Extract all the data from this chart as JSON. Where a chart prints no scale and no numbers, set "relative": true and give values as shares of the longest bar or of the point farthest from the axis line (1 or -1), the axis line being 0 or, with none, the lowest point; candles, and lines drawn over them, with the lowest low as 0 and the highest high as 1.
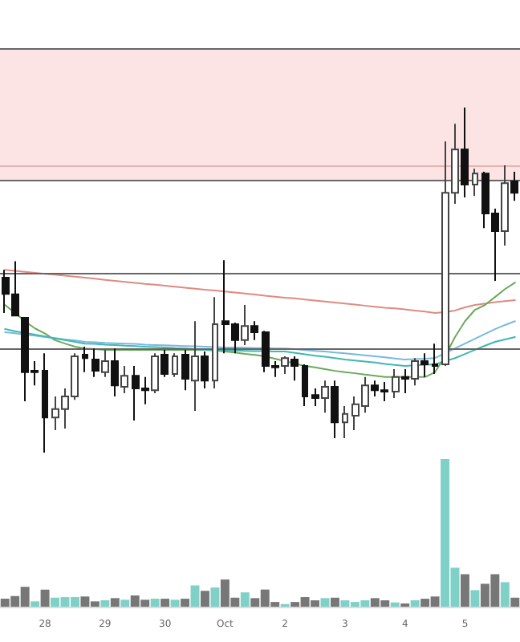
{
  "chart_data": [
    {
      "type": "candlestick",
      "relative": true,
      "categories": [
        null,
        null,
        null,
        null,
        "28",
        null,
        null,
        null,
        null,
        null,
        "29",
        null,
        null,
        null,
        null,
        null,
        "30",
        null,
        null,
        null,
        null,
        null,
        "Oct",
        null,
        null,
        null,
        null,
        null,
        "2",
        null,
        null,
        null,
        null,
        null,
        "3",
        null,
        null,
        null,
        null,
        null,
        "4",
        null,
        null,
        null,
        null,
        null,
        "5",
        null,
        null,
        null,
        null,
        null
      ],
      "ohlc": [
        [
          0.507,
          0.53,
          0.405,
          0.46
        ],
        [
          0.459,
          0.555,
          0.395,
          0.397
        ],
        [
          0.391,
          0.391,
          0.149,
          0.233
        ],
        [
          0.237,
          0.265,
          0.195,
          0.233
        ],
        [
          0.237,
          0.288,
          0,
          0.102
        ],
        [
          0.102,
          0.163,
          0.065,
          0.126
        ],
        [
          0.126,
          0.186,
          0.07,
          0.163
        ],
        [
          0.163,
          0.288,
          0.153,
          0.279
        ],
        [
          0.284,
          0.307,
          0.233,
          0.274
        ],
        [
          0.27,
          0.302,
          0.219,
          0.237
        ],
        [
          0.233,
          0.298,
          0.219,
          0.265
        ],
        [
          0.265,
          0.302,
          0.163,
          0.195
        ],
        [
          0.191,
          0.251,
          0.172,
          0.223
        ],
        [
          0.223,
          0.251,
          0.093,
          0.186
        ],
        [
          0.186,
          0.219,
          0.14,
          0.181
        ],
        [
          0.181,
          0.288,
          0.172,
          0.279
        ],
        [
          0.284,
          0.298,
          0.219,
          0.228
        ],
        [
          0.228,
          0.288,
          0.219,
          0.279
        ],
        [
          0.284,
          0.298,
          0.181,
          0.214
        ],
        [
          0.209,
          0.381,
          0.121,
          0.279
        ],
        [
          0.279,
          0.293,
          0.186,
          0.209
        ],
        [
          0.209,
          0.451,
          0.186,
          0.372
        ],
        [
          0.381,
          0.558,
          0.288,
          0.372
        ],
        [
          0.372,
          0.377,
          0.288,
          0.326
        ],
        [
          0.326,
          0.428,
          0.312,
          0.367
        ],
        [
          0.367,
          0.381,
          0.326,
          0.349
        ],
        [
          0.349,
          0.353,
          0.233,
          0.251
        ],
        [
          0.251,
          0.265,
          0.219,
          0.247
        ],
        [
          0.251,
          0.279,
          0.228,
          0.274
        ],
        [
          0.27,
          0.279,
          0.209,
          0.251
        ],
        [
          0.251,
          0.256,
          0.135,
          0.163
        ],
        [
          0.167,
          0.186,
          0.135,
          0.158
        ],
        [
          0.158,
          0.209,
          0.116,
          0.191
        ],
        [
          0.191,
          0.209,
          0.042,
          0.088
        ],
        [
          0.088,
          0.135,
          0.042,
          0.112
        ],
        [
          0.107,
          0.163,
          0.065,
          0.14
        ],
        [
          0.135,
          0.219,
          0.116,
          0.195
        ],
        [
          0.195,
          0.209,
          0.163,
          0.181
        ],
        [
          0.181,
          0.205,
          0.149,
          0.177
        ],
        [
          0.177,
          0.242,
          0.158,
          0.219
        ],
        [
          0.219,
          0.242,
          0.172,
          0.214
        ],
        [
          0.214,
          0.274,
          0.195,
          0.265
        ],
        [
          0.265,
          0.288,
          0.219,
          0.256
        ],
        [
          0.256,
          0.316,
          0.228,
          0.251
        ],
        [
          0.256,
          0.902,
          0.251,
          0.753
        ],
        [
          0.753,
          0.953,
          0.721,
          0.879
        ],
        [
          0.879,
          1.0,
          0.74,
          0.777
        ],
        [
          0.777,
          0.823,
          0.744,
          0.809
        ],
        [
          0.809,
          0.814,
          0.651,
          0.693
        ],
        [
          0.693,
          0.707,
          0.498,
          0.642
        ],
        [
          0.642,
          0.833,
          0.6,
          0.781
        ],
        [
          0.786,
          0.814,
          0.73,
          0.753
        ]
      ],
      "series": [
        {
          "type": "line",
          "color": "#e08a80",
          "values": [
            0.53,
            0.527,
            0.524,
            0.521,
            0.518,
            0.516,
            0.513,
            0.51,
            0.507,
            0.504,
            0.501,
            0.498,
            0.495,
            0.492,
            0.489,
            0.487,
            0.484,
            0.481,
            0.478,
            0.475,
            0.472,
            0.47,
            0.467,
            0.464,
            0.461,
            0.458,
            0.455,
            0.452,
            0.449,
            0.447,
            0.444,
            0.441,
            0.438,
            0.435,
            0.432,
            0.429,
            0.426,
            0.423,
            0.42,
            0.418,
            0.415,
            0.412,
            0.409,
            0.405,
            0.407,
            0.412,
            0.421,
            0.428,
            0.432,
            0.436,
            0.439,
            0.442
          ]
        },
        {
          "type": "line",
          "color": "#6aaa5a",
          "values": [
            0.428,
            0.405,
            0.381,
            0.36,
            0.345,
            0.326,
            0.316,
            0.307,
            0.302,
            0.3,
            0.298,
            0.298,
            0.298,
            0.298,
            0.298,
            0.298,
            0.298,
            0.298,
            0.298,
            0.298,
            0.298,
            0.296,
            0.293,
            0.29,
            0.286,
            0.283,
            0.279,
            0.272,
            0.265,
            0.258,
            0.251,
            0.247,
            0.242,
            0.237,
            0.233,
            0.23,
            0.226,
            0.223,
            0.219,
            0.219,
            0.219,
            0.219,
            0.219,
            0.233,
            0.279,
            0.335,
            0.381,
            0.414,
            0.428,
            0.451,
            0.474,
            0.493
          ]
        },
        {
          "type": "line",
          "color": "#7ab8e0",
          "values": [
            0.349,
            0.346,
            0.342,
            0.339,
            0.335,
            0.332,
            0.328,
            0.325,
            0.321,
            0.32,
            0.318,
            0.317,
            0.316,
            0.315,
            0.313,
            0.312,
            0.311,
            0.31,
            0.309,
            0.308,
            0.307,
            0.306,
            0.305,
            0.305,
            0.304,
            0.303,
            0.303,
            0.302,
            0.302,
            0.3,
            0.297,
            0.295,
            0.293,
            0.29,
            0.288,
            0.285,
            0.282,
            0.279,
            0.276,
            0.273,
            0.27,
            0.271,
            0.272,
            0.274,
            0.288,
            0.302,
            0.316,
            0.33,
            0.344,
            0.358,
            0.37,
            0.381
          ]
        },
        {
          "type": "line",
          "color": "#3fb8b0",
          "values": [
            0.358,
            0.352,
            0.347,
            0.342,
            0.337,
            0.331,
            0.326,
            0.321,
            0.316,
            0.315,
            0.313,
            0.312,
            0.31,
            0.309,
            0.307,
            0.306,
            0.305,
            0.303,
            0.302,
            0.3,
            0.298,
            0.297,
            0.296,
            0.296,
            0.295,
            0.294,
            0.294,
            0.293,
            0.293,
            0.289,
            0.285,
            0.281,
            0.278,
            0.274,
            0.27,
            0.267,
            0.264,
            0.261,
            0.257,
            0.254,
            0.251,
            0.253,
            0.255,
            0.256,
            0.265,
            0.274,
            0.286,
            0.298,
            0.31,
            0.321,
            0.328,
            0.335
          ]
        }
      ],
      "bands": [
        {
          "axis": "y",
          "from": 0.791,
          "to": 1.172,
          "color": "#fde4e4"
        }
      ],
      "ref_lines": [
        {
          "axis": "y",
          "value": 1.172,
          "color": "#666666"
        },
        {
          "axis": "y",
          "value": 0.828,
          "color": "#e8b4b4"
        },
        {
          "axis": "y",
          "value": 0.791,
          "color": "#666666"
        },
        {
          "axis": "y",
          "value": 0.521,
          "color": "#666666"
        },
        {
          "axis": "y",
          "value": 0.302,
          "color": "#666666"
        }
      ]
    },
    {
      "type": "bar",
      "relative": true,
      "categories": [
        null,
        null,
        null,
        null,
        null,
        null,
        null,
        null,
        null,
        null,
        null,
        null,
        null,
        null,
        null,
        null,
        null,
        null,
        null,
        null,
        null,
        null,
        null,
        null,
        null,
        null,
        null,
        null,
        null,
        null,
        null,
        null,
        null,
        null,
        null,
        null,
        null,
        null,
        null,
        null,
        null,
        null,
        null,
        null,
        null,
        null,
        null,
        null,
        null,
        null,
        null,
        null
      ],
      "values": [
        0.054,
        0.072,
        0.134,
        0.036,
        0.116,
        0.061,
        0.065,
        0.065,
        0.069,
        0.036,
        0.043,
        0.058,
        0.047,
        0.076,
        0.047,
        0.054,
        0.054,
        0.047,
        0.054,
        0.144,
        0.108,
        0.13,
        0.184,
        0.061,
        0.097,
        0.058,
        0.116,
        0.032,
        0.018,
        0.032,
        0.065,
        0.043,
        0.058,
        0.061,
        0.043,
        0.032,
        0.043,
        0.058,
        0.043,
        0.029,
        0.022,
        0.043,
        0.054,
        0.069,
        1,
        0.264,
        0.22,
        0.112,
        0.155,
        0.22,
        0.166,
        0.061
      ],
      "colors": [
        "#777777",
        "#777777",
        "#777777",
        "#7fd1c7",
        "#777777",
        "#7fd1c7",
        "#7fd1c7",
        "#7fd1c7",
        "#777777",
        "#777777",
        "#7fd1c7",
        "#777777",
        "#7fd1c7",
        "#777777",
        "#777777",
        "#7fd1c7",
        "#777777",
        "#7fd1c7",
        "#777777",
        "#7fd1c7",
        "#777777",
        "#7fd1c7",
        "#777777",
        "#777777",
        "#7fd1c7",
        "#777777",
        "#777777",
        "#777777",
        "#7fd1c7",
        "#777777",
        "#777777",
        "#777777",
        "#7fd1c7",
        "#777777",
        "#7fd1c7",
        "#7fd1c7",
        "#7fd1c7",
        "#777777",
        "#777777",
        "#7fd1c7",
        "#777777",
        "#7fd1c7",
        "#777777",
        "#777777",
        "#7fd1c7",
        "#7fd1c7",
        "#777777",
        "#7fd1c7",
        "#777777",
        "#777777",
        "#7fd1c7",
        "#777777"
      ]
    }
  ]
}
